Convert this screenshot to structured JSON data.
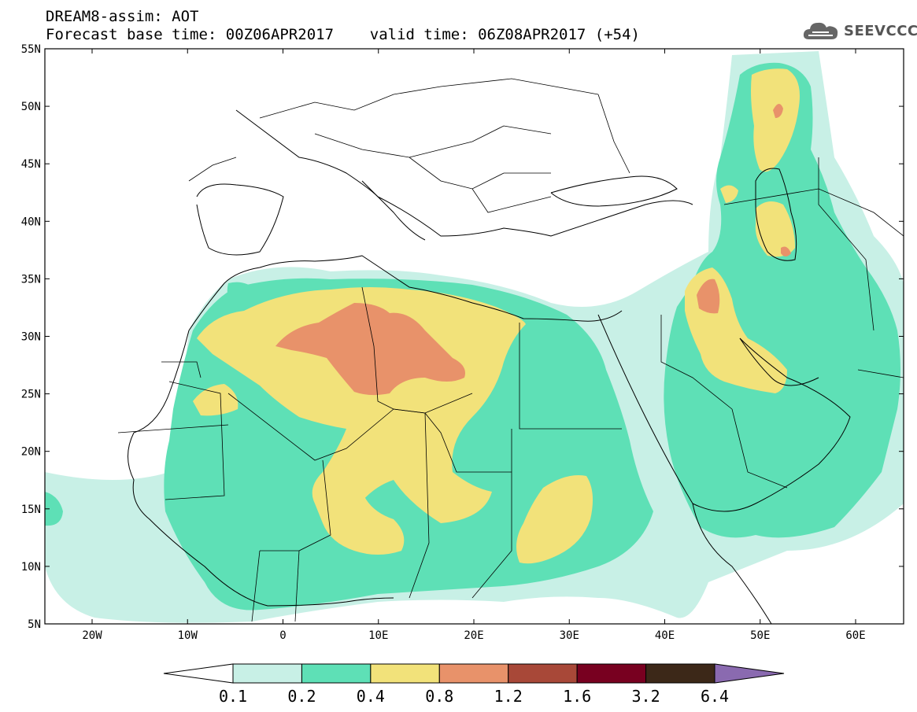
{
  "header": {
    "line1": "DREAM8-assim: AOT",
    "line2": "Forecast base time: 00Z06APR2017    valid time: 06Z08APR2017 (+54)"
  },
  "logo": {
    "text": "SEEVCCC",
    "icon": "cloud-icon"
  },
  "map": {
    "lat_labels": [
      "55N",
      "50N",
      "45N",
      "40N",
      "35N",
      "30N",
      "25N",
      "20N",
      "15N",
      "10N",
      "5N"
    ],
    "lon_labels": [
      "20W",
      "10W",
      "0",
      "10E",
      "20E",
      "30E",
      "40E",
      "50E",
      "60E"
    ]
  },
  "colorbar": {
    "labels": [
      "0.1",
      "0.2",
      "0.4",
      "0.8",
      "1.2",
      "1.6",
      "3.2",
      "6.4"
    ],
    "colors": [
      "#ffffff",
      "#c8f0e6",
      "#5ee0b6",
      "#f2e27a",
      "#e8926a",
      "#a84838",
      "#780020",
      "#3c2818",
      "#8a6ab0"
    ]
  },
  "palette": {
    "c01": "#c8f0e6",
    "c02": "#5ee0b6",
    "c04": "#f2e27a",
    "c08": "#e8926a"
  }
}
